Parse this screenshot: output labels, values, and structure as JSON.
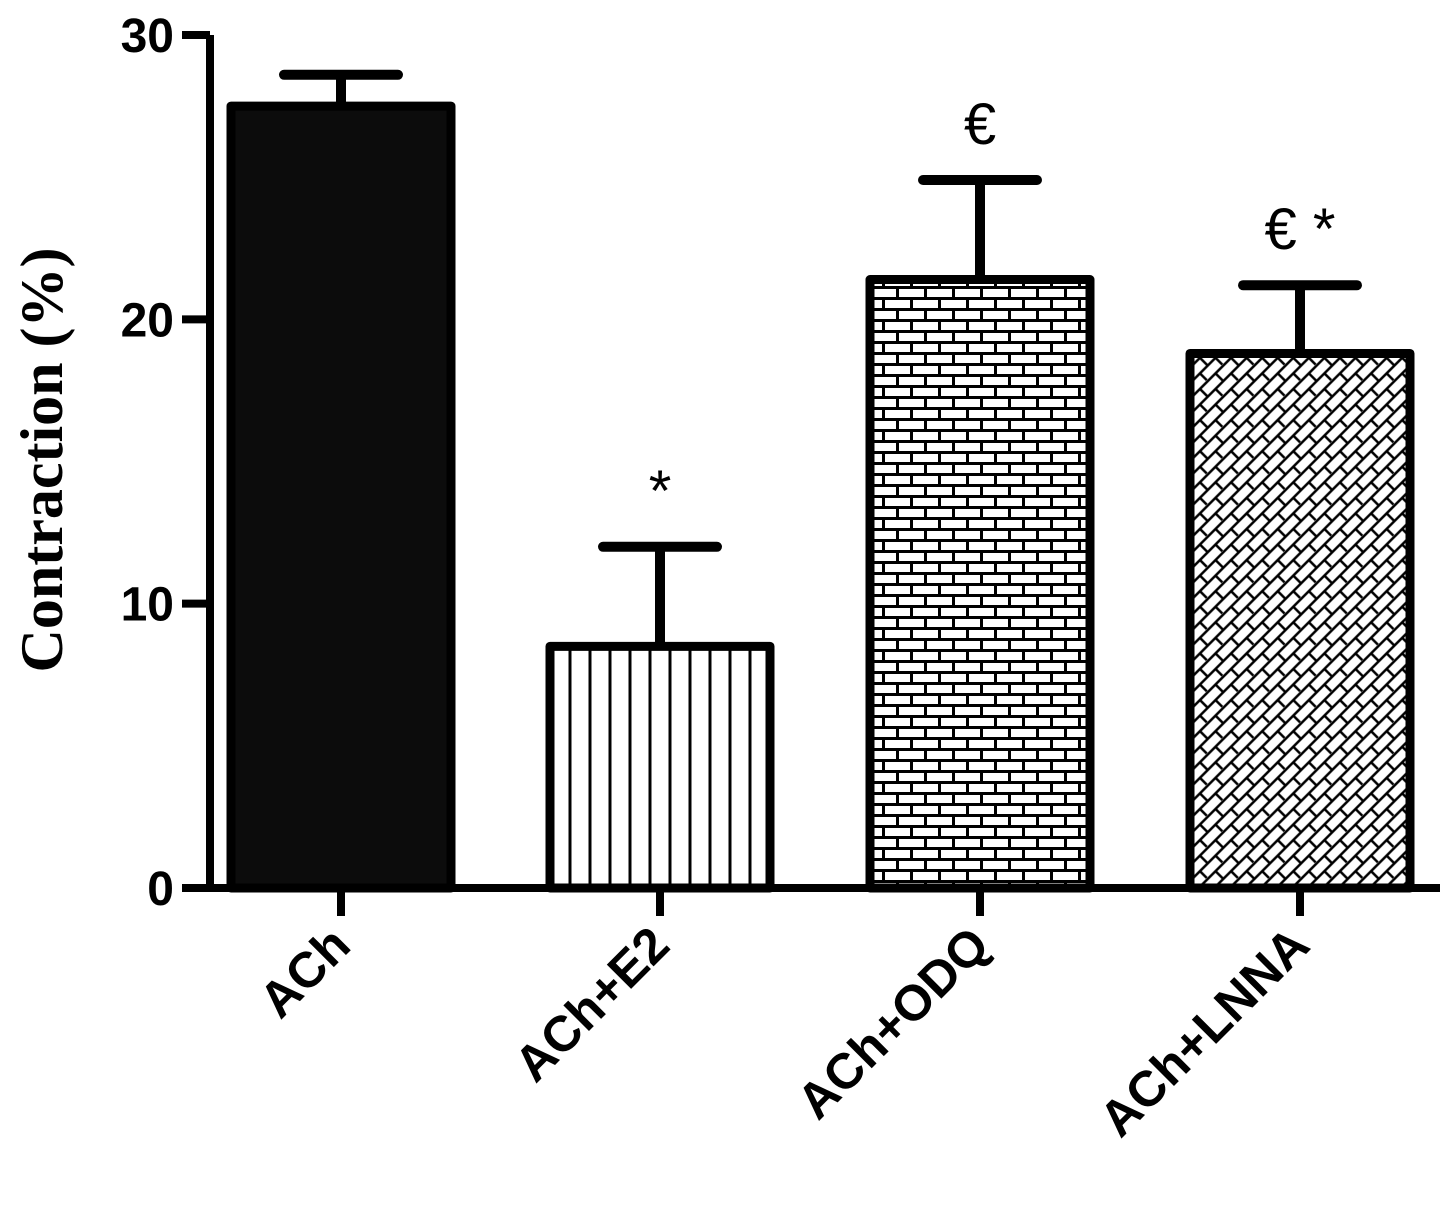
{
  "chart_data": {
    "type": "bar",
    "categories": [
      "ACh",
      "ACh+E2",
      "ACh+ODQ",
      "ACh+LNNA"
    ],
    "values": [
      27.5,
      8.5,
      21.4,
      18.8
    ],
    "errors": [
      1.1,
      3.5,
      3.5,
      2.4
    ],
    "annotations": [
      "",
      "*",
      "€",
      "€ *"
    ],
    "fills": [
      "solid",
      "vertical-lines",
      "brick",
      "diagonal-brick"
    ],
    "title": "",
    "xlabel": "",
    "ylabel": "Contraction (%)",
    "ylim": [
      0,
      30
    ],
    "yticks": [
      0,
      10,
      20,
      30
    ],
    "ytick_labels": [
      "0",
      "10",
      "20",
      "30"
    ],
    "grid": false,
    "colors": {
      "bar_fill": "#0c0c0c",
      "outline": "#000000",
      "background": "#ffffff"
    }
  }
}
